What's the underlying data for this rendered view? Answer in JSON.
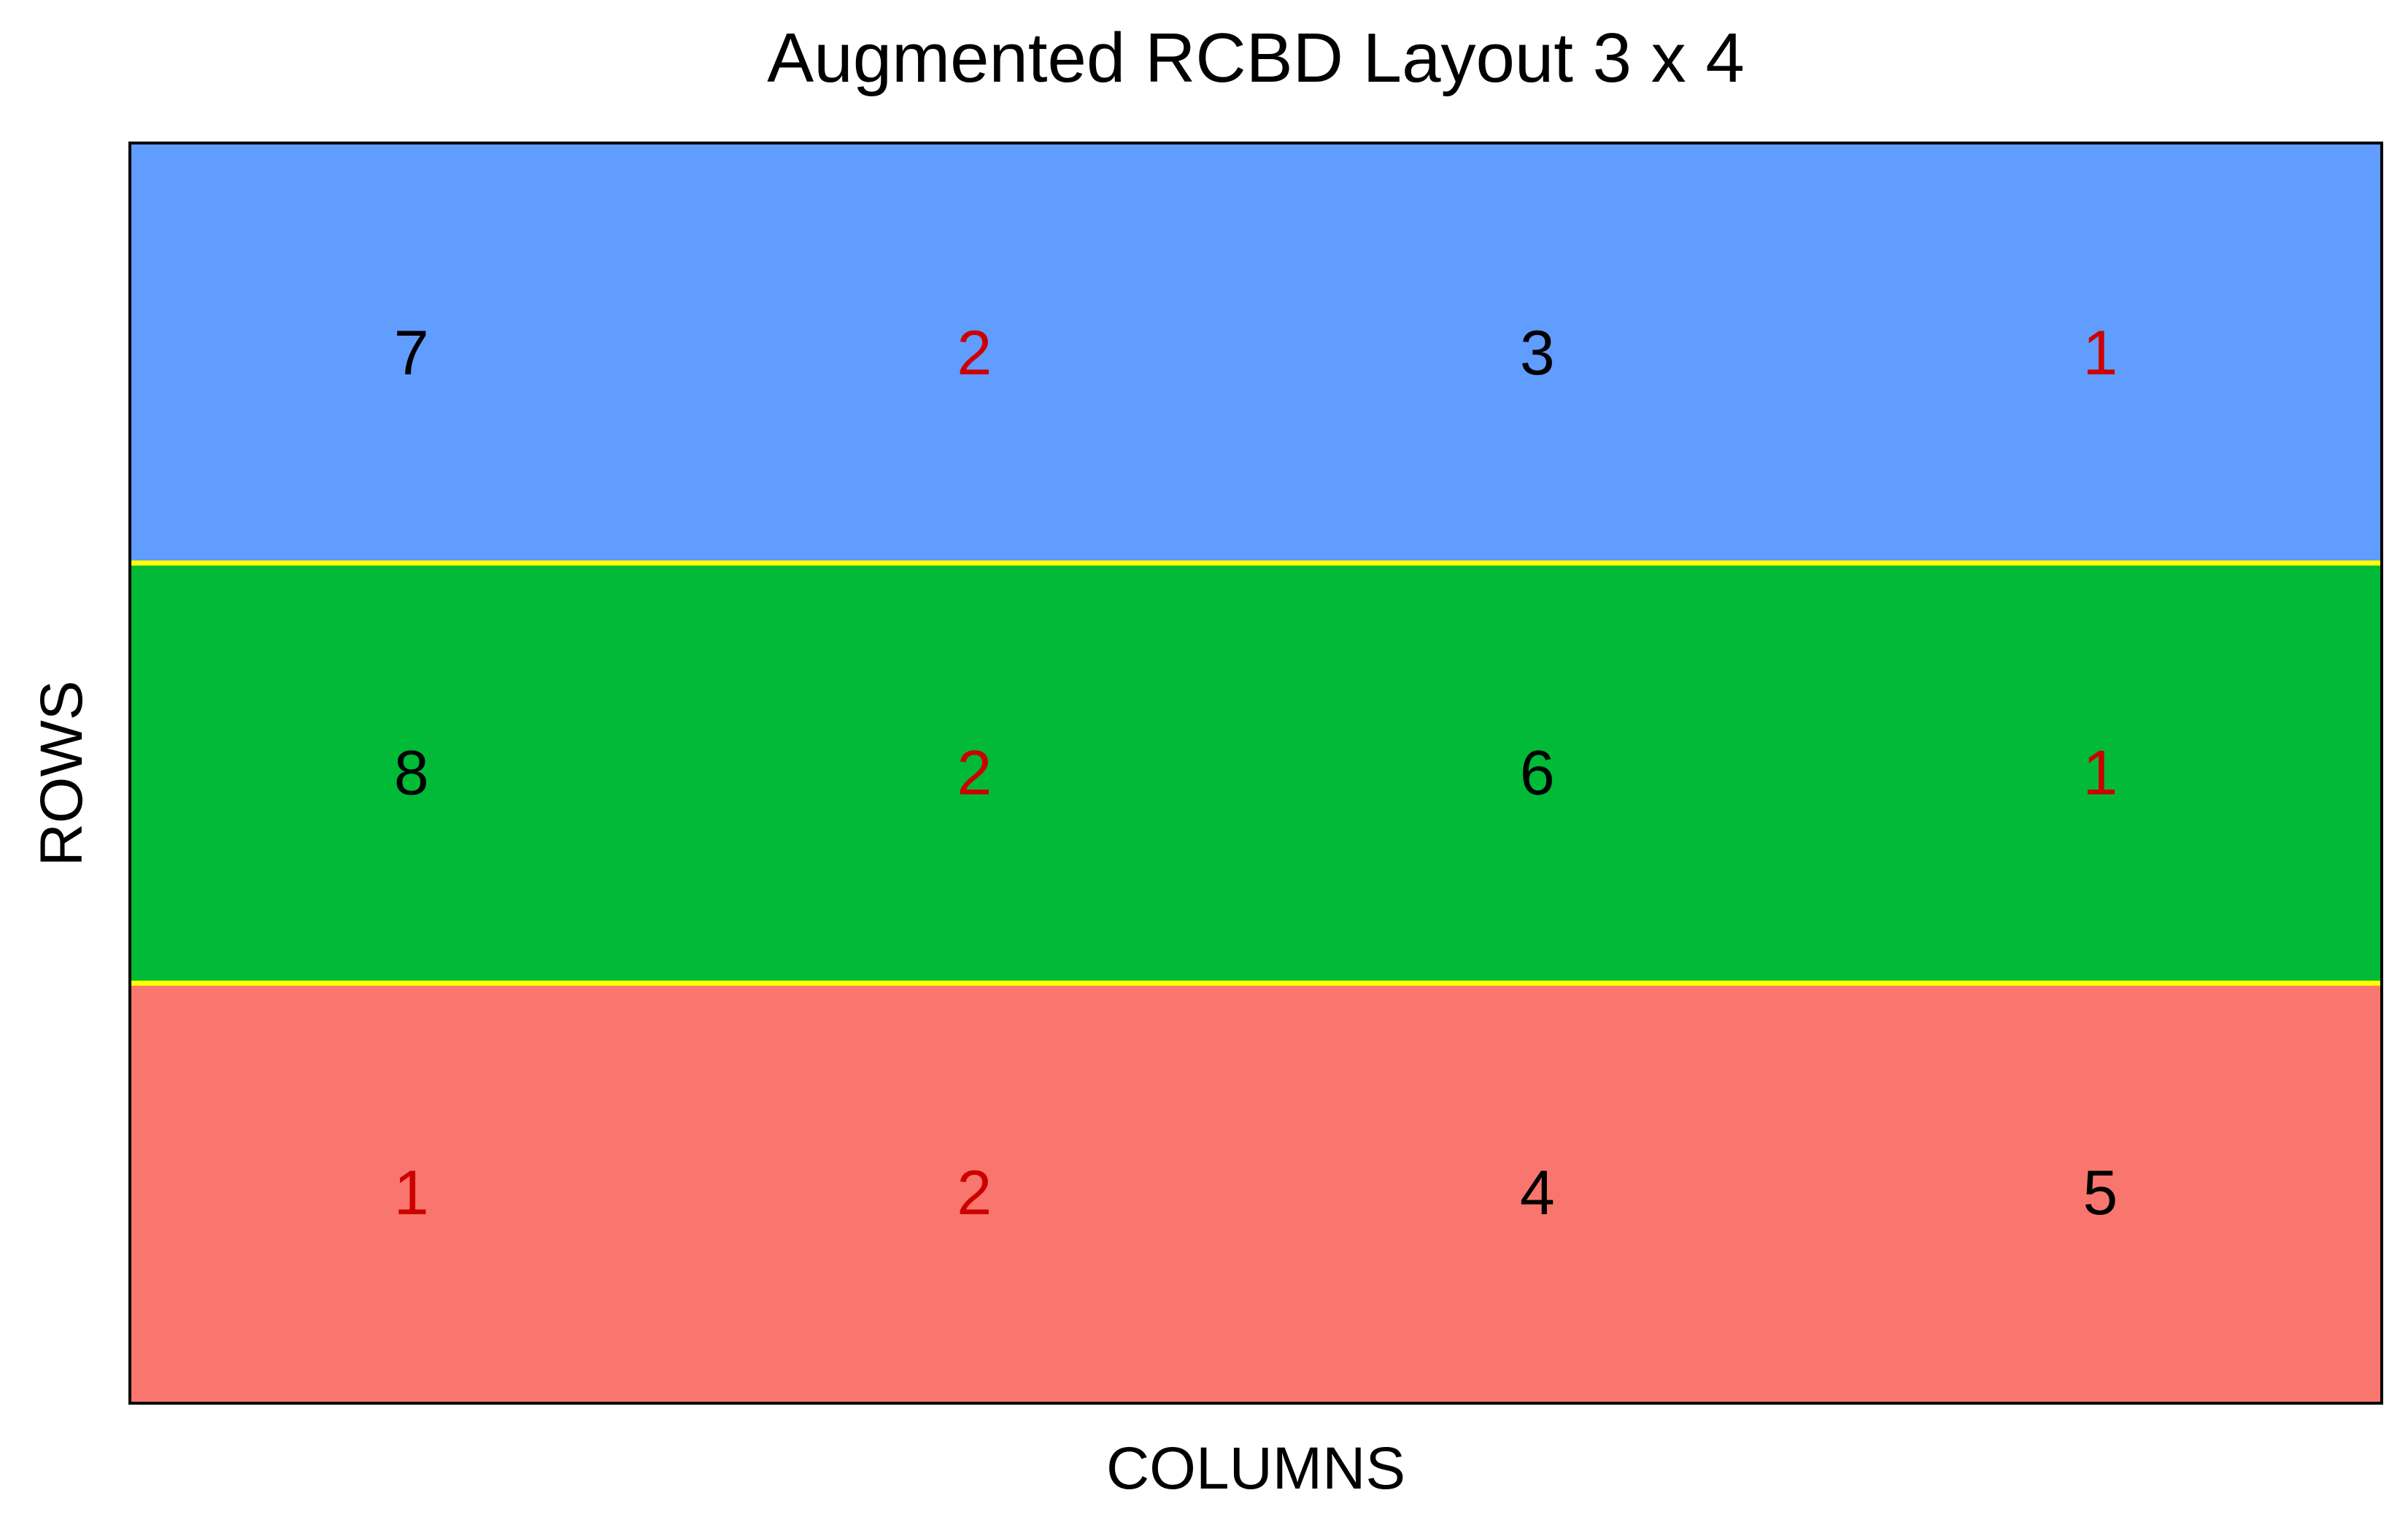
{
  "chart_data": {
    "type": "heatmap",
    "title": "Augmented RCBD Layout 3 x 4",
    "xlabel": "COLUMNS",
    "ylabel": "ROWS",
    "n_rows": 3,
    "n_cols": 4,
    "grid": false,
    "block_separator_color": "#FFFF00",
    "border_color": "#000000",
    "check_color": "#CC0000",
    "entry_color": "#000000",
    "rows": [
      {
        "color": "#619CFF",
        "cells": [
          {
            "label": "7",
            "check": false
          },
          {
            "label": "2",
            "check": true
          },
          {
            "label": "3",
            "check": false
          },
          {
            "label": "1",
            "check": true
          }
        ]
      },
      {
        "color": "#00BA38",
        "cells": [
          {
            "label": "8",
            "check": false
          },
          {
            "label": "2",
            "check": true
          },
          {
            "label": "6",
            "check": false
          },
          {
            "label": "1",
            "check": true
          }
        ]
      },
      {
        "color": "#F8766D",
        "cells": [
          {
            "label": "1",
            "check": true
          },
          {
            "label": "2",
            "check": true
          },
          {
            "label": "4",
            "check": false
          },
          {
            "label": "5",
            "check": false
          }
        ]
      }
    ]
  }
}
